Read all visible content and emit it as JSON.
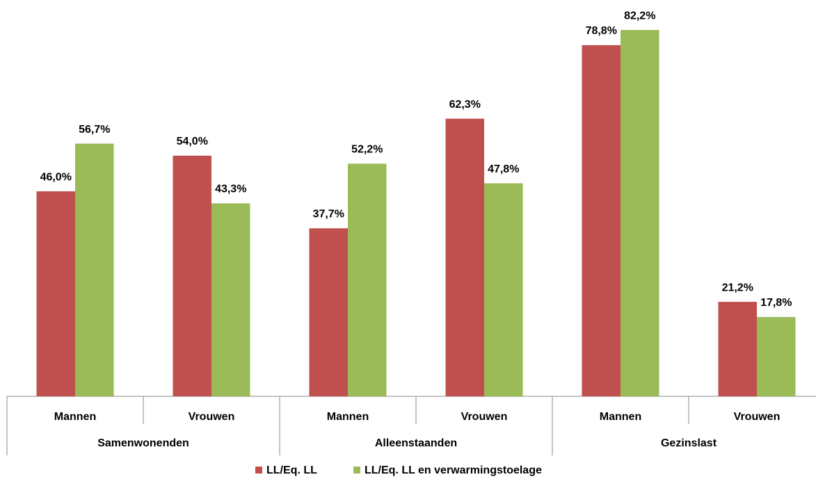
{
  "chart_data": {
    "type": "bar",
    "categories": [
      "Mannen",
      "Vrouwen",
      "Mannen",
      "Vrouwen",
      "Mannen",
      "Vrouwen"
    ],
    "category_groups": [
      "Samenwonenden",
      "Alleenstaanden",
      "Gezinslast"
    ],
    "series": [
      {
        "name": "LL/Eq. LL",
        "color": "#c0504d",
        "values": [
          46.0,
          54.0,
          37.7,
          62.3,
          78.8,
          21.2
        ],
        "value_labels": [
          "46,0%",
          "54,0%",
          "37,7%",
          "62,3%",
          "78,8%",
          "21,2%"
        ]
      },
      {
        "name": "LL/Eq. LL en verwarmingstoelage",
        "color": "#9bbb59",
        "values": [
          56.7,
          43.3,
          52.2,
          47.8,
          82.2,
          17.8
        ],
        "value_labels": [
          "56,7%",
          "43,3%",
          "52,2%",
          "47,8%",
          "82,2%",
          "17,8%"
        ]
      }
    ],
    "legend": "bottom"
  }
}
